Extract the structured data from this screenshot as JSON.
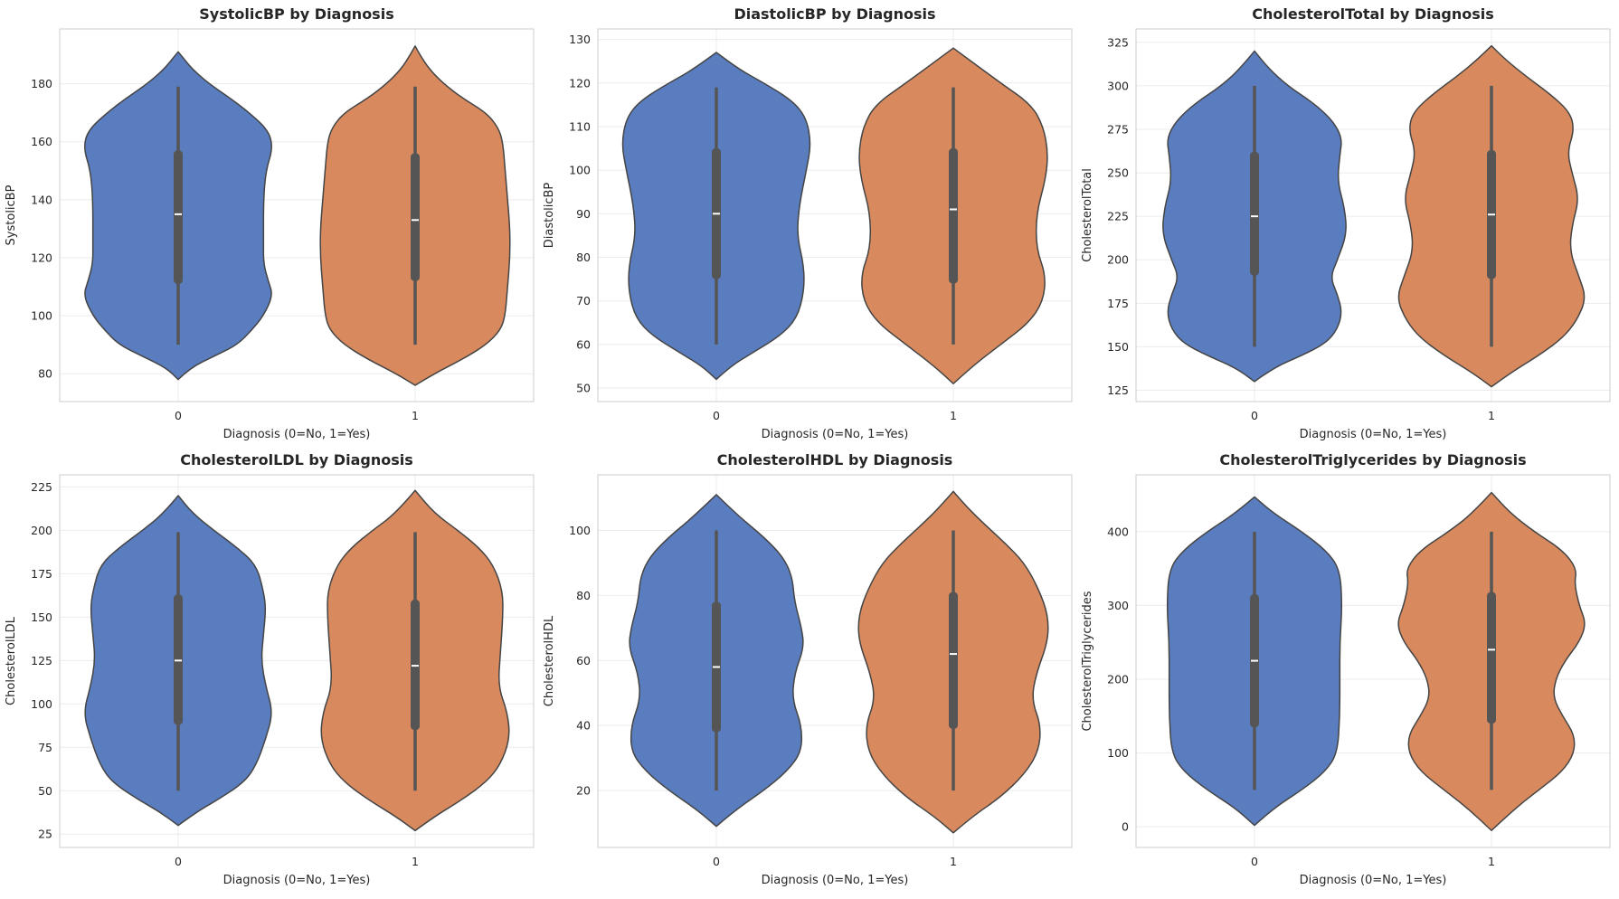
{
  "colors": {
    "cat0": "#5A7DBF",
    "cat1": "#D88A5E",
    "edge": "#444444",
    "box": "#555555",
    "median": "#ffffff",
    "grid": "#EBEBEB",
    "spine": "#CCCCCC"
  },
  "chart_data": [
    {
      "type": "violin",
      "title": "SystolicBP by Diagnosis",
      "xlabel": "Diagnosis (0=No, 1=Yes)",
      "ylabel": "SystolicBP",
      "categories": [
        "0",
        "1"
      ],
      "ylim": [
        70.4,
        198.9
      ],
      "yticks": [
        80,
        100,
        120,
        140,
        160,
        180
      ],
      "grid": true,
      "series": [
        {
          "category": "0",
          "whisker": [
            90,
            179
          ],
          "box": [
            111,
            157
          ],
          "median": 135,
          "density": [
            [
              78,
              0
            ],
            [
              82,
              0.05
            ],
            [
              86,
              0.15
            ],
            [
              90,
              0.25
            ],
            [
              95,
              0.31
            ],
            [
              100,
              0.36
            ],
            [
              107,
              0.4
            ],
            [
              112,
              0.38
            ],
            [
              118,
              0.36
            ],
            [
              125,
              0.36
            ],
            [
              140,
              0.36
            ],
            [
              150,
              0.37
            ],
            [
              158,
              0.4
            ],
            [
              164,
              0.38
            ],
            [
              170,
              0.3
            ],
            [
              175,
              0.22
            ],
            [
              180,
              0.13
            ],
            [
              185,
              0.06
            ],
            [
              189,
              0.02
            ],
            [
              191,
              0
            ]
          ]
        },
        {
          "category": "1",
          "whisker": [
            90,
            179
          ],
          "box": [
            112,
            156
          ],
          "median": 133,
          "density": [
            [
              76,
              0
            ],
            [
              80,
              0.08
            ],
            [
              85,
              0.2
            ],
            [
              90,
              0.3
            ],
            [
              95,
              0.36
            ],
            [
              100,
              0.38
            ],
            [
              110,
              0.39
            ],
            [
              120,
              0.4
            ],
            [
              130,
              0.4
            ],
            [
              140,
              0.39
            ],
            [
              150,
              0.38
            ],
            [
              160,
              0.37
            ],
            [
              165,
              0.35
            ],
            [
              170,
              0.3
            ],
            [
              175,
              0.2
            ],
            [
              180,
              0.12
            ],
            [
              185,
              0.06
            ],
            [
              190,
              0.02
            ],
            [
              193,
              0
            ]
          ]
        }
      ]
    },
    {
      "type": "violin",
      "title": "DiastolicBP by Diagnosis",
      "xlabel": "Diagnosis (0=No, 1=Yes)",
      "ylabel": "DiastolicBP",
      "categories": [
        "0",
        "1"
      ],
      "ylim": [
        46.9,
        132.4
      ],
      "yticks": [
        50,
        60,
        70,
        80,
        90,
        100,
        110,
        120,
        130
      ],
      "grid": true,
      "series": [
        {
          "category": "0",
          "whisker": [
            60,
            119
          ],
          "box": [
            75,
            105
          ],
          "median": 90,
          "density": [
            [
              52,
              0
            ],
            [
              55,
              0.06
            ],
            [
              58,
              0.15
            ],
            [
              62,
              0.27
            ],
            [
              66,
              0.34
            ],
            [
              72,
              0.37
            ],
            [
              78,
              0.37
            ],
            [
              85,
              0.34
            ],
            [
              92,
              0.35
            ],
            [
              100,
              0.38
            ],
            [
              106,
              0.4
            ],
            [
              112,
              0.38
            ],
            [
              116,
              0.32
            ],
            [
              120,
              0.2
            ],
            [
              123,
              0.1
            ],
            [
              127,
              0
            ]
          ]
        },
        {
          "category": "1",
          "whisker": [
            60,
            119
          ],
          "box": [
            74,
            105
          ],
          "median": 91,
          "density": [
            [
              51,
              0
            ],
            [
              55,
              0.08
            ],
            [
              60,
              0.2
            ],
            [
              65,
              0.32
            ],
            [
              70,
              0.38
            ],
            [
              76,
              0.39
            ],
            [
              82,
              0.35
            ],
            [
              90,
              0.35
            ],
            [
              98,
              0.39
            ],
            [
              104,
              0.4
            ],
            [
              110,
              0.38
            ],
            [
              115,
              0.33
            ],
            [
              120,
              0.2
            ],
            [
              124,
              0.1
            ],
            [
              128,
              0
            ]
          ]
        }
      ]
    },
    {
      "type": "violin",
      "title": "CholesterolTotal by Diagnosis",
      "xlabel": "Diagnosis (0=No, 1=Yes)",
      "ylabel": "CholesterolTotal",
      "categories": [
        "0",
        "1"
      ],
      "ylim": [
        118.5,
        332.7
      ],
      "yticks": [
        125,
        150,
        175,
        200,
        225,
        250,
        275,
        300,
        325
      ],
      "grid": true,
      "series": [
        {
          "category": "0",
          "whisker": [
            150,
            300
          ],
          "box": [
            191,
            262
          ],
          "median": 225,
          "density": [
            [
              130,
              0
            ],
            [
              138,
              0.08
            ],
            [
              145,
              0.2
            ],
            [
              152,
              0.3
            ],
            [
              160,
              0.35
            ],
            [
              170,
              0.37
            ],
            [
              180,
              0.35
            ],
            [
              190,
              0.32
            ],
            [
              200,
              0.35
            ],
            [
              215,
              0.39
            ],
            [
              230,
              0.38
            ],
            [
              245,
              0.35
            ],
            [
              260,
              0.36
            ],
            [
              270,
              0.37
            ],
            [
              280,
              0.33
            ],
            [
              290,
              0.25
            ],
            [
              300,
              0.14
            ],
            [
              310,
              0.06
            ],
            [
              320,
              0
            ]
          ]
        },
        {
          "category": "1",
          "whisker": [
            150,
            300
          ],
          "box": [
            189,
            263
          ],
          "median": 226,
          "density": [
            [
              127,
              0
            ],
            [
              135,
              0.08
            ],
            [
              145,
              0.2
            ],
            [
              155,
              0.3
            ],
            [
              165,
              0.36
            ],
            [
              178,
              0.4
            ],
            [
              190,
              0.37
            ],
            [
              205,
              0.33
            ],
            [
              220,
              0.34
            ],
            [
              235,
              0.37
            ],
            [
              250,
              0.34
            ],
            [
              262,
              0.32
            ],
            [
              275,
              0.35
            ],
            [
              285,
              0.33
            ],
            [
              295,
              0.25
            ],
            [
              305,
              0.15
            ],
            [
              315,
              0.06
            ],
            [
              323,
              0
            ]
          ]
        }
      ]
    },
    {
      "type": "violin",
      "title": "CholesterolLDL by Diagnosis",
      "xlabel": "Diagnosis (0=No, 1=Yes)",
      "ylabel": "CholesterolLDL",
      "categories": [
        "0",
        "1"
      ],
      "ylim": [
        17.3,
        232
      ],
      "yticks": [
        25,
        50,
        75,
        100,
        125,
        150,
        175,
        200,
        225
      ],
      "grid": true,
      "series": [
        {
          "category": "0",
          "whisker": [
            50,
            199
          ],
          "box": [
            88,
            163
          ],
          "median": 125,
          "density": [
            [
              30,
              0
            ],
            [
              38,
              0.08
            ],
            [
              45,
              0.17
            ],
            [
              55,
              0.28
            ],
            [
              65,
              0.33
            ],
            [
              80,
              0.37
            ],
            [
              95,
              0.4
            ],
            [
              110,
              0.37
            ],
            [
              125,
              0.35
            ],
            [
              140,
              0.36
            ],
            [
              155,
              0.37
            ],
            [
              165,
              0.36
            ],
            [
              180,
              0.33
            ],
            [
              190,
              0.25
            ],
            [
              200,
              0.15
            ],
            [
              210,
              0.06
            ],
            [
              220,
              0
            ]
          ]
        },
        {
          "category": "1",
          "whisker": [
            50,
            199
          ],
          "box": [
            85,
            160
          ],
          "median": 122,
          "density": [
            [
              27,
              0
            ],
            [
              35,
              0.08
            ],
            [
              45,
              0.2
            ],
            [
              55,
              0.3
            ],
            [
              65,
              0.36
            ],
            [
              80,
              0.4
            ],
            [
              95,
              0.39
            ],
            [
              110,
              0.35
            ],
            [
              130,
              0.36
            ],
            [
              150,
              0.37
            ],
            [
              165,
              0.37
            ],
            [
              180,
              0.33
            ],
            [
              190,
              0.27
            ],
            [
              200,
              0.18
            ],
            [
              210,
              0.08
            ],
            [
              223,
              0
            ]
          ]
        }
      ]
    },
    {
      "type": "violin",
      "title": "CholesterolHDL by Diagnosis",
      "xlabel": "Diagnosis (0=No, 1=Yes)",
      "ylabel": "CholesterolHDL",
      "categories": [
        "0",
        "1"
      ],
      "ylim": [
        2.5,
        117.1
      ],
      "yticks": [
        20,
        40,
        60,
        80,
        100
      ],
      "grid": true,
      "series": [
        {
          "category": "0",
          "whisker": [
            20,
            100
          ],
          "box": [
            38,
            78
          ],
          "median": 58,
          "density": [
            [
              9,
              0
            ],
            [
              14,
              0.08
            ],
            [
              20,
              0.2
            ],
            [
              26,
              0.3
            ],
            [
              32,
              0.36
            ],
            [
              40,
              0.36
            ],
            [
              48,
              0.32
            ],
            [
              56,
              0.33
            ],
            [
              64,
              0.37
            ],
            [
              70,
              0.36
            ],
            [
              78,
              0.33
            ],
            [
              86,
              0.32
            ],
            [
              92,
              0.28
            ],
            [
              98,
              0.2
            ],
            [
              104,
              0.1
            ],
            [
              111,
              0
            ]
          ]
        },
        {
          "category": "1",
          "whisker": [
            20,
            100
          ],
          "box": [
            39,
            81
          ],
          "median": 62,
          "density": [
            [
              7,
              0
            ],
            [
              12,
              0.08
            ],
            [
              18,
              0.2
            ],
            [
              25,
              0.3
            ],
            [
              32,
              0.36
            ],
            [
              40,
              0.37
            ],
            [
              48,
              0.33
            ],
            [
              56,
              0.35
            ],
            [
              66,
              0.4
            ],
            [
              74,
              0.4
            ],
            [
              82,
              0.36
            ],
            [
              90,
              0.3
            ],
            [
              96,
              0.22
            ],
            [
              102,
              0.13
            ],
            [
              107,
              0.06
            ],
            [
              112,
              0
            ]
          ]
        }
      ]
    },
    {
      "type": "violin",
      "title": "CholesterolTriglycerides by Diagnosis",
      "xlabel": "Diagnosis (0=No, 1=Yes)",
      "ylabel": "CholesterolTriglycerides",
      "categories": [
        "0",
        "1"
      ],
      "ylim": [
        -28,
        477
      ],
      "yticks": [
        0,
        100,
        200,
        300,
        400
      ],
      "grid": true,
      "series": [
        {
          "category": "0",
          "whisker": [
            50,
            400
          ],
          "box": [
            135,
            315
          ],
          "median": 225,
          "density": [
            [
              2,
              0
            ],
            [
              25,
              0.08
            ],
            [
              50,
              0.2
            ],
            [
              75,
              0.3
            ],
            [
              100,
              0.35
            ],
            [
              150,
              0.36
            ],
            [
              200,
              0.36
            ],
            [
              250,
              0.36
            ],
            [
              300,
              0.37
            ],
            [
              350,
              0.36
            ],
            [
              375,
              0.3
            ],
            [
              400,
              0.2
            ],
            [
              425,
              0.08
            ],
            [
              447,
              0
            ]
          ]
        },
        {
          "category": "1",
          "whisker": [
            50,
            400
          ],
          "box": [
            140,
            318
          ],
          "median": 240,
          "density": [
            [
              -5,
              0
            ],
            [
              25,
              0.1
            ],
            [
              50,
              0.2
            ],
            [
              75,
              0.3
            ],
            [
              100,
              0.35
            ],
            [
              125,
              0.35
            ],
            [
              150,
              0.3
            ],
            [
              175,
              0.26
            ],
            [
              200,
              0.27
            ],
            [
              225,
              0.31
            ],
            [
              250,
              0.37
            ],
            [
              275,
              0.4
            ],
            [
              300,
              0.37
            ],
            [
              330,
              0.35
            ],
            [
              350,
              0.36
            ],
            [
              375,
              0.3
            ],
            [
              400,
              0.18
            ],
            [
              425,
              0.08
            ],
            [
              453,
              0
            ]
          ]
        }
      ]
    }
  ]
}
